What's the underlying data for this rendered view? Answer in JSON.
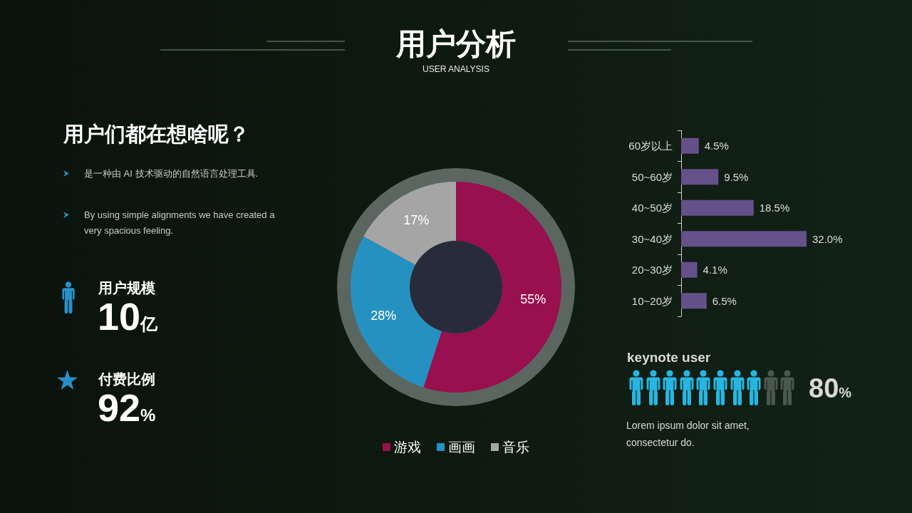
{
  "chart_data": [
    {
      "type": "other",
      "title": "用户分析",
      "subtitle": "USER ANALYSIS"
    },
    {
      "type": "other",
      "title": "用户们都在想啥呢？",
      "annotations": [
        "是一种由 AI 技术驱动的自然语言处理工具.",
        "By using simple alignments we have created a very spacious feeling.",
        "用户规模",
        "10亿",
        "付费比例",
        "92%"
      ]
    },
    {
      "type": "donut",
      "categories": [
        "游戏",
        "画画",
        "音乐"
      ],
      "values": [
        55,
        28,
        17
      ],
      "colors": [
        "#98104e",
        "#2591c1",
        "#a5a5a5"
      ],
      "value_labels": [
        "55%",
        "28%",
        "17%"
      ],
      "legend": "bottom"
    },
    {
      "type": "bar",
      "orientation": "horizontal",
      "categories": [
        "60岁以上",
        "50~60岁",
        "40~50岁",
        "30~40岁",
        "20~30岁",
        "10~20岁"
      ],
      "values": [
        4.5,
        9.5,
        18.5,
        32.0,
        4.1,
        6.5
      ],
      "color": "#65518a",
      "value_labels": [
        "4.5%",
        "9.5%",
        "18.5%",
        "32.0%",
        "4.1%",
        "6.5%"
      ],
      "tick_labels": "y"
    },
    {
      "type": "other",
      "title": "keynote user",
      "values": [
        80
      ],
      "value_labels": [
        "80%"
      ],
      "color": "#29b5e0",
      "annotations": [
        "Lorem ipsum dolor sit amet, consectetur do."
      ]
    }
  ]
}
